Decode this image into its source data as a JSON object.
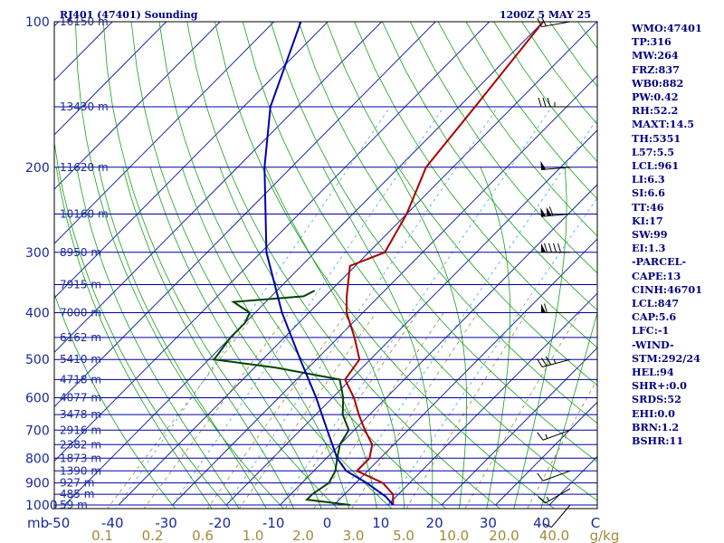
{
  "header": {
    "station": "RJ401 (47401) Sounding",
    "valid": "1200Z  5 MAY 25"
  },
  "pressure_labels": [
    "100",
    "200",
    "300",
    "400",
    "500",
    "600",
    "700",
    "800",
    "900",
    "1000"
  ],
  "height_labels": [
    "16150 m",
    "13430 m",
    "11620 m",
    "10160 m",
    "8950 m",
    "7915 m",
    "7000 m",
    "6162 m",
    "5410 m",
    "4718 m",
    "4077 m",
    "3478 m",
    "2916 m",
    "2382 m",
    "1873 m",
    "1390 m",
    "927 m",
    "485 m",
    "59 m"
  ],
  "temp_axis": {
    "unit_label": "mb",
    "ticks": [
      "-50",
      "-40",
      "-30",
      "-20",
      "-10",
      "0",
      "10",
      "20",
      "30",
      "40",
      "C"
    ]
  },
  "mix_axis": {
    "ticks": [
      "0.1",
      "0.2",
      "0.6",
      "1.0",
      "2.0",
      "3.0",
      "5.0",
      "10.0",
      "20.0",
      "40.0",
      "g/kg"
    ]
  },
  "indices": [
    "WMO:47401",
    "TP:316",
    "MW:264",
    "FRZ:837",
    "WB0:882",
    "PW:0.42",
    "RH:52.2",
    "MAXT:14.5",
    "TH:5351",
    "L57:5.5",
    "LCL:961",
    "LI:6.3",
    "SI:6.6",
    "TT:46",
    "KI:17",
    "SW:99",
    "EI:1.3",
    "-PARCEL-",
    "CAPE:13",
    "CINH:46701",
    "LCL:847",
    "CAP:5.6",
    "LFC:-1",
    "-WIND-",
    "STM:292/24",
    "HEL:94",
    "SHR+:0.0",
    "SRDS:52",
    "EHI:0.0",
    "BRN:1.2",
    "BSHR:11"
  ],
  "colors": {
    "background": "#ffffff",
    "frame": "#000000",
    "isobar": "#0000a0",
    "isotherm": "#1a2aa0",
    "dry_adiabat": "#18a018",
    "moist_adiabat": "#18a018",
    "mixing_ratio": "#a08a3a",
    "text": "#00007f",
    "temperature": "#aa0000",
    "dewpoint": "#004400",
    "parcel": "#0000aa",
    "barb": "#000000"
  },
  "chart_data": {
    "type": "line",
    "title": "RJ401 (47401) Sounding",
    "subtitle": "1200Z  5 MAY 25",
    "xlabel": "C",
    "ylabel": "mb",
    "log_pressure_axis": true,
    "skewed_isotherms": true,
    "ylim": [
      1000,
      100
    ],
    "xlim_at_1000mb": [
      -50,
      50
    ],
    "grid": true,
    "series": [
      {
        "key": "temperature",
        "points": [
          {
            "p": 1000,
            "t": 11
          },
          {
            "p": 950,
            "t": 9
          },
          {
            "p": 900,
            "t": 5
          },
          {
            "p": 850,
            "t": -2
          },
          {
            "p": 800,
            "t": -2
          },
          {
            "p": 750,
            "t": -4
          },
          {
            "p": 700,
            "t": -8
          },
          {
            "p": 650,
            "t": -12
          },
          {
            "p": 600,
            "t": -16
          },
          {
            "p": 550,
            "t": -21
          },
          {
            "p": 500,
            "t": -22
          },
          {
            "p": 450,
            "t": -27
          },
          {
            "p": 400,
            "t": -33
          },
          {
            "p": 370,
            "t": -36
          },
          {
            "p": 320,
            "t": -41
          },
          {
            "p": 300,
            "t": -37
          },
          {
            "p": 250,
            "t": -40
          },
          {
            "p": 200,
            "t": -45
          },
          {
            "p": 150,
            "t": -47
          },
          {
            "p": 100,
            "t": -50
          }
        ]
      },
      {
        "key": "dewpoint",
        "points": [
          {
            "p": 1000,
            "t": 3
          },
          {
            "p": 975,
            "t": -6
          },
          {
            "p": 950,
            "t": -6
          },
          {
            "p": 900,
            "t": -5
          },
          {
            "p": 850,
            "t": -6
          },
          {
            "p": 800,
            "t": -8
          },
          {
            "p": 750,
            "t": -10
          },
          {
            "p": 700,
            "t": -11
          },
          {
            "p": 650,
            "t": -15
          },
          {
            "p": 600,
            "t": -18
          },
          {
            "p": 550,
            "t": -22
          },
          {
            "p": 520,
            "t": -36
          },
          {
            "p": 500,
            "t": -49
          },
          {
            "p": 450,
            "t": -50
          },
          {
            "p": 420,
            "t": -50
          },
          {
            "p": 400,
            "t": -51
          },
          {
            "p": 380,
            "t": -56
          },
          {
            "p": 370,
            "t": -44
          },
          {
            "p": 360,
            "t": -43
          }
        ]
      },
      {
        "key": "parcel",
        "points": [
          {
            "p": 1000,
            "t": 11
          },
          {
            "p": 960,
            "t": 8
          },
          {
            "p": 900,
            "t": 2
          },
          {
            "p": 850,
            "t": -4
          },
          {
            "p": 800,
            "t": -8
          },
          {
            "p": 700,
            "t": -15
          },
          {
            "p": 600,
            "t": -23
          },
          {
            "p": 500,
            "t": -33
          },
          {
            "p": 400,
            "t": -45
          },
          {
            "p": 300,
            "t": -59
          },
          {
            "p": 200,
            "t": -75
          },
          {
            "p": 150,
            "t": -85
          },
          {
            "p": 100,
            "t": -95
          }
        ]
      }
    ],
    "wind_barbs": [
      {
        "p": 100,
        "dir": 260,
        "kt": 20
      },
      {
        "p": 150,
        "dir": 270,
        "kt": 35
      },
      {
        "p": 200,
        "dir": 265,
        "kt": 50
      },
      {
        "p": 250,
        "dir": 265,
        "kt": 110
      },
      {
        "p": 300,
        "dir": 270,
        "kt": 90
      },
      {
        "p": 400,
        "dir": 270,
        "kt": 60
      },
      {
        "p": 500,
        "dir": 255,
        "kt": 35
      },
      {
        "p": 700,
        "dir": 250,
        "kt": 15
      },
      {
        "p": 850,
        "dir": 250,
        "kt": 10
      },
      {
        "p": 925,
        "dir": 240,
        "kt": 15
      },
      {
        "p": 1000,
        "dir": 220,
        "kt": 10
      }
    ]
  }
}
